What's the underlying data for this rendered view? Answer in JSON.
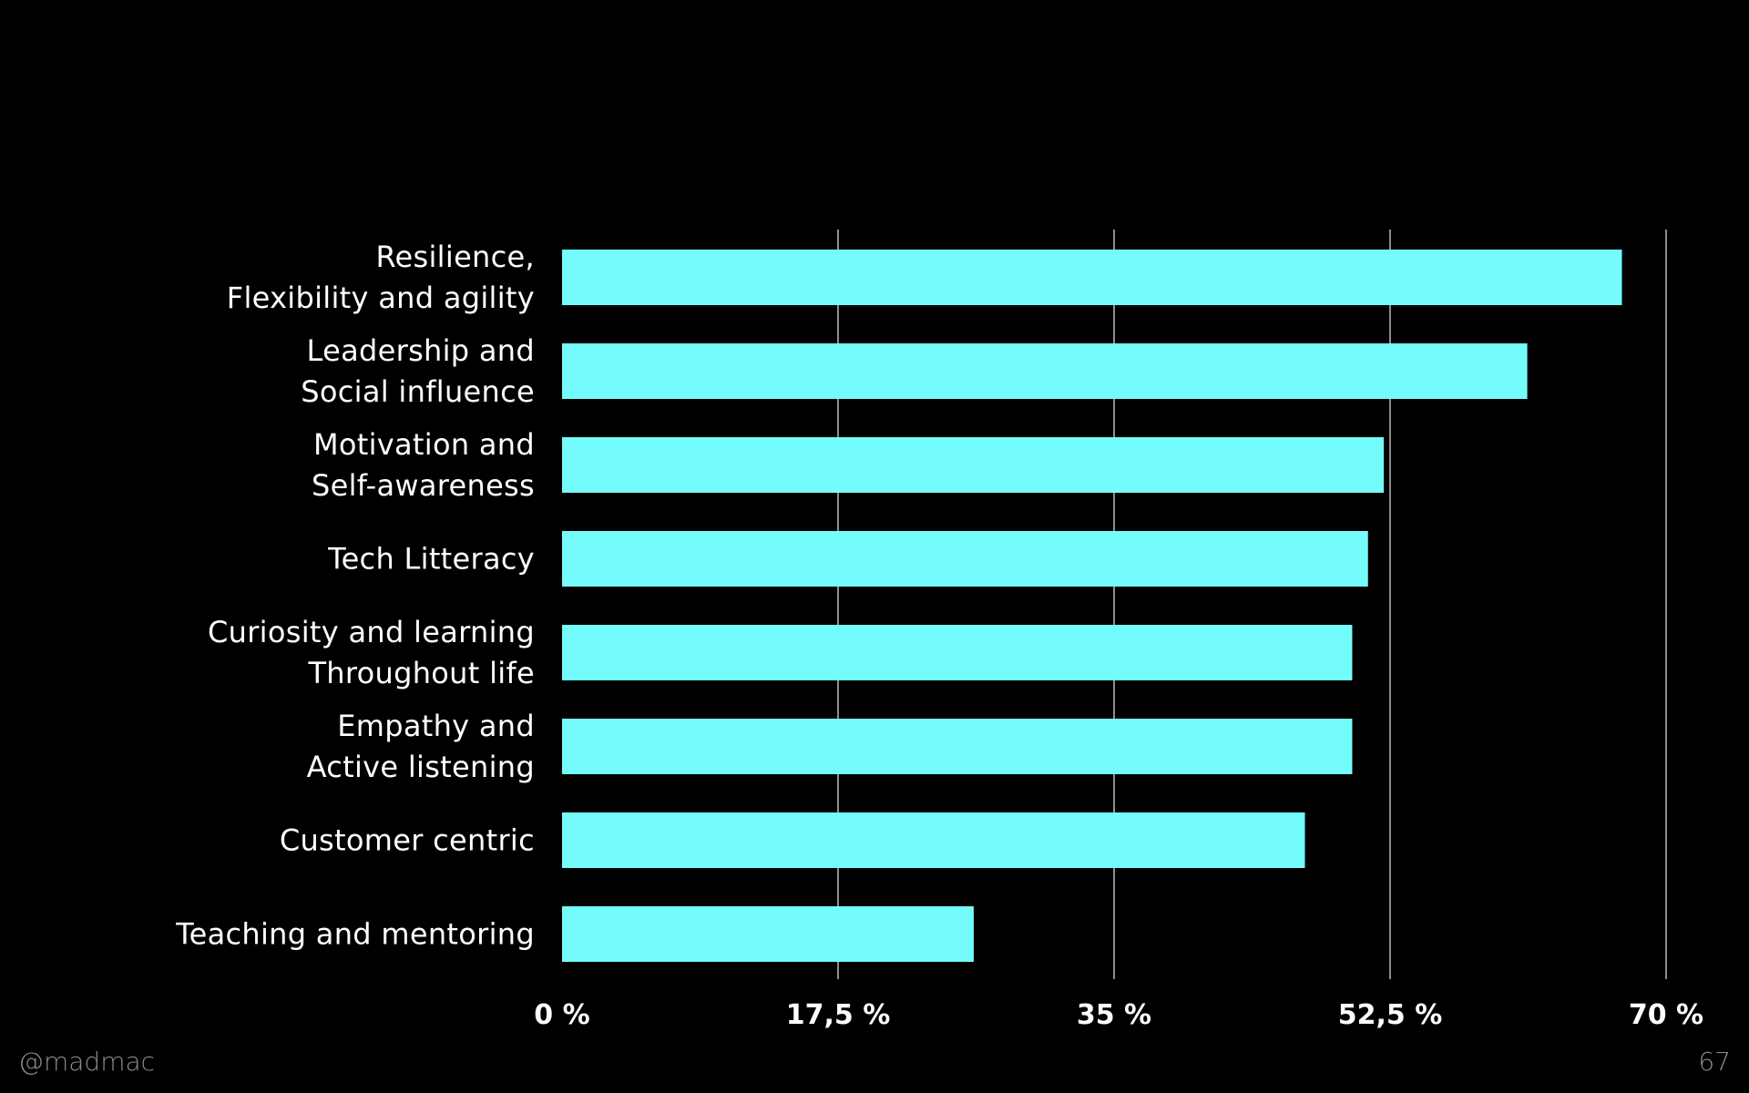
{
  "chart_data": {
    "type": "bar",
    "orientation": "horizontal",
    "categories": [
      [
        "Resilience,",
        "Flexibility and agility"
      ],
      [
        "Leadership and",
        "Social influence"
      ],
      [
        "Motivation and",
        "Self-awareness"
      ],
      [
        "Tech Litteracy"
      ],
      [
        "Curiosity and learning",
        "Throughout life"
      ],
      [
        "Empathy and",
        "Active listening"
      ],
      [
        "Customer centric"
      ],
      [
        "Teaching and mentoring"
      ]
    ],
    "values": [
      67.2,
      61.2,
      52.1,
      51.1,
      50.1,
      50.1,
      47.1,
      26.1
    ],
    "xlim": [
      0,
      70
    ],
    "ticks": [
      0,
      17.5,
      35,
      52.5,
      70
    ],
    "tick_labels": [
      "0 %",
      "17,5 %",
      "35 %",
      "52,5 %",
      "70 %"
    ],
    "grid": true,
    "title": "",
    "xlabel": "",
    "ylabel": ""
  },
  "colors": {
    "background": "#000000",
    "bar": "#74fcfc",
    "grid": "#bdbdbd",
    "text": "#ffffff",
    "footer": "#8a8a8a"
  },
  "footer": {
    "handle": "@madmac",
    "page_number": "67"
  }
}
